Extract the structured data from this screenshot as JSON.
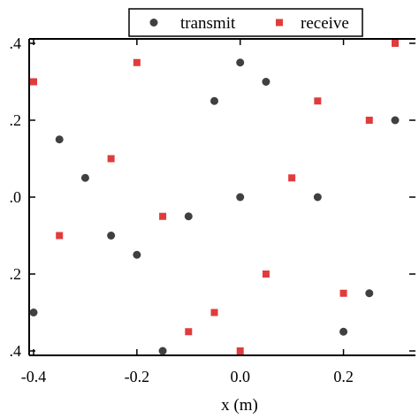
{
  "chart_data": {
    "type": "scatter",
    "xlabel": "x (m)",
    "ylabel": "",
    "xlim": [
      -0.42,
      0.35
    ],
    "ylim": [
      -0.4,
      0.4
    ],
    "grid": false,
    "legend_position": "top",
    "x_ticks": [
      {
        "value": -0.4,
        "label": "-0.4"
      },
      {
        "value": -0.2,
        "label": "-0.2"
      },
      {
        "value": 0.0,
        "label": "0.0"
      },
      {
        "value": 0.2,
        "label": "0.2"
      }
    ],
    "y_ticks": [
      {
        "value": 0.4,
        "label": ".4"
      },
      {
        "value": 0.2,
        "label": ".2"
      },
      {
        "value": 0.0,
        "label": ".0"
      },
      {
        "value": -0.2,
        "label": ".2"
      },
      {
        "value": -0.4,
        "label": ".4"
      }
    ],
    "series": [
      {
        "name": "transmit",
        "marker": "circle",
        "color": "#404040",
        "points": [
          {
            "x": 0.0,
            "y": 0.35
          },
          {
            "x": 0.05,
            "y": 0.3
          },
          {
            "x": -0.05,
            "y": 0.25
          },
          {
            "x": 0.3,
            "y": 0.2
          },
          {
            "x": -0.35,
            "y": 0.15
          },
          {
            "x": -0.3,
            "y": 0.05
          },
          {
            "x": 0.0,
            "y": 0.0
          },
          {
            "x": 0.15,
            "y": 0.0
          },
          {
            "x": -0.1,
            "y": -0.05
          },
          {
            "x": -0.25,
            "y": -0.1
          },
          {
            "x": -0.2,
            "y": -0.15
          },
          {
            "x": 0.25,
            "y": -0.25
          },
          {
            "x": -0.4,
            "y": -0.3
          },
          {
            "x": 0.2,
            "y": -0.35
          },
          {
            "x": -0.15,
            "y": -0.4
          }
        ]
      },
      {
        "name": "receive",
        "marker": "square",
        "color": "#e03c3c",
        "points": [
          {
            "x": 0.3,
            "y": 0.4
          },
          {
            "x": -0.2,
            "y": 0.35
          },
          {
            "x": -0.4,
            "y": 0.3
          },
          {
            "x": 0.15,
            "y": 0.25
          },
          {
            "x": 0.25,
            "y": 0.2
          },
          {
            "x": -0.25,
            "y": 0.1
          },
          {
            "x": 0.1,
            "y": 0.05
          },
          {
            "x": -0.15,
            "y": -0.05
          },
          {
            "x": -0.35,
            "y": -0.1
          },
          {
            "x": 0.05,
            "y": -0.2
          },
          {
            "x": 0.2,
            "y": -0.25
          },
          {
            "x": -0.05,
            "y": -0.3
          },
          {
            "x": -0.1,
            "y": -0.35
          },
          {
            "x": 0.0,
            "y": -0.4
          }
        ]
      }
    ]
  }
}
